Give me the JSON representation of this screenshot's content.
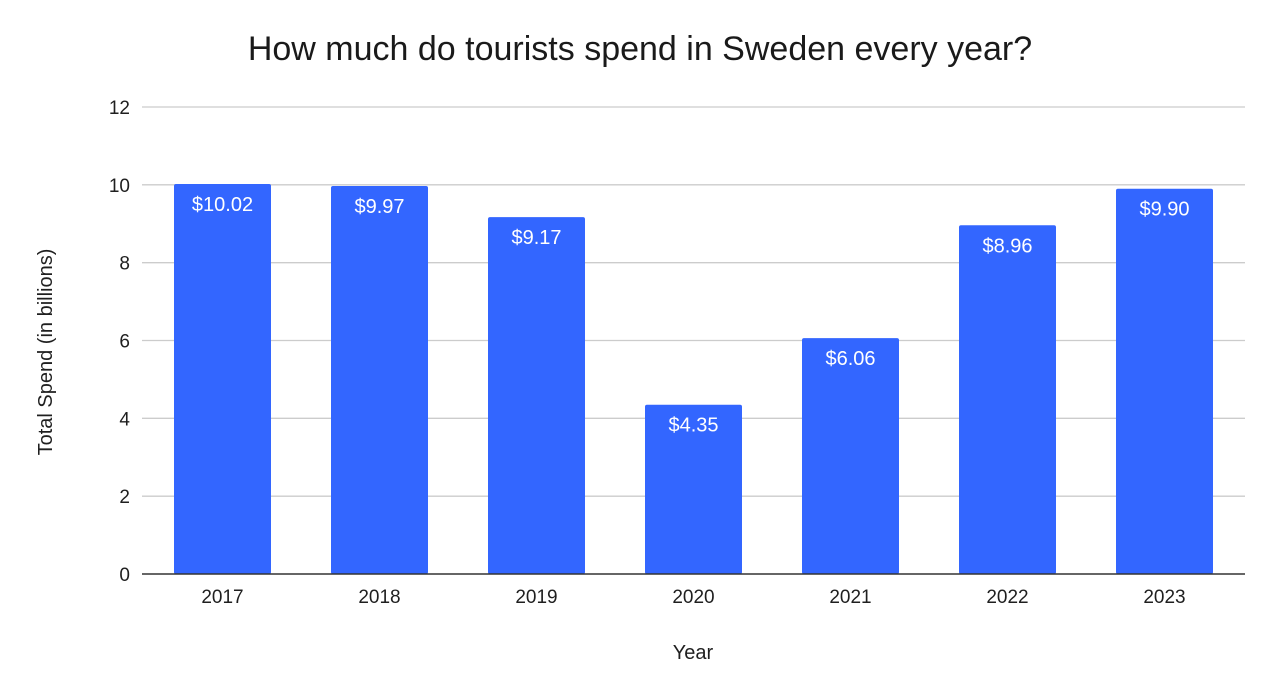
{
  "chart_data": {
    "type": "bar",
    "title": "How much do tourists spend in Sweden every year?",
    "xlabel": "Year",
    "ylabel": "Total Spend (in billions)",
    "categories": [
      "2017",
      "2018",
      "2019",
      "2020",
      "2021",
      "2022",
      "2023"
    ],
    "values": [
      10.02,
      9.97,
      9.17,
      4.35,
      6.06,
      8.96,
      9.9
    ],
    "data_labels": [
      "$10.02",
      "$9.97",
      "$9.17",
      "$4.35",
      "$6.06",
      "$8.96",
      "$9.90"
    ],
    "ylim": [
      0,
      12
    ],
    "yticks": [
      "0",
      "2",
      "4",
      "6",
      "8",
      "10",
      "12"
    ],
    "grid": true,
    "legend": "none",
    "colors": {
      "bar": "#3366ff",
      "grid": "#cccccc",
      "baseline": "#333333",
      "data_label": "#ffffff"
    }
  }
}
